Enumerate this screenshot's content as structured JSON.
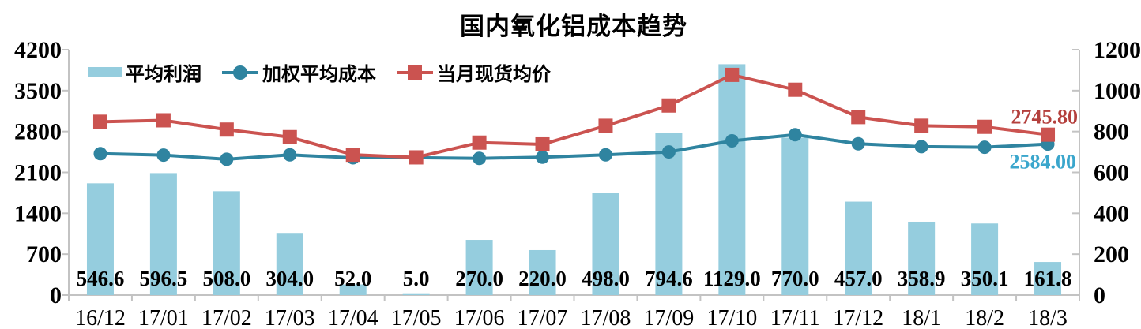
{
  "chart_data": {
    "type": "combo-bar-line",
    "title": "国内氧化铝成本趋势",
    "categories": [
      "16/12",
      "17/01",
      "17/02",
      "17/03",
      "17/04",
      "17/05",
      "17/06",
      "17/07",
      "17/08",
      "17/09",
      "17/10",
      "17/11",
      "17/12",
      "18/1",
      "18/2",
      "18/3"
    ],
    "series": [
      {
        "name": "平均利润",
        "type": "bar",
        "axis": "right",
        "color": "#95cdde",
        "values": [
          546.6,
          596.5,
          508.0,
          304.0,
          52.0,
          5.0,
          270.0,
          220.0,
          498.0,
          794.6,
          1129.0,
          770.0,
          457.0,
          358.9,
          350.1,
          161.8
        ],
        "value_labels": [
          "546.6",
          "596.5",
          "508.0",
          "304.0",
          "52.0",
          "5.0",
          "270.0",
          "220.0",
          "498.0",
          "794.6",
          "1129.0",
          "770.0",
          "457.0",
          "358.9",
          "350.1",
          "161.8"
        ]
      },
      {
        "name": "加权平均成本",
        "type": "line",
        "marker": "circle",
        "axis": "left",
        "color": "#2f84a0",
        "values": [
          2420,
          2395,
          2325,
          2400,
          2350,
          2352,
          2340,
          2360,
          2400,
          2450,
          2640,
          2745,
          2590,
          2540,
          2530,
          2584.0
        ]
      },
      {
        "name": "当月现货均价",
        "type": "line",
        "marker": "square",
        "axis": "left",
        "color": "#cb5350",
        "values": [
          2966.6,
          2991.5,
          2833.0,
          2704.0,
          2402.0,
          2357.0,
          2610.0,
          2580.0,
          2898.0,
          3244.6,
          3769.0,
          3515.0,
          3047.0,
          2898.9,
          2880.1,
          2745.8
        ]
      }
    ],
    "left_axis": {
      "min": 0,
      "max": 4200,
      "step": 700,
      "tick_labels": [
        "0",
        "700",
        "1400",
        "2100",
        "2800",
        "3500",
        "4200"
      ]
    },
    "right_axis": {
      "min": 0,
      "max": 1200,
      "step": 200,
      "tick_labels": [
        "0",
        "200",
        "400",
        "600",
        "800",
        "1000",
        "1200"
      ]
    },
    "end_labels": [
      {
        "text": "2745.80",
        "series": "当月现货均价",
        "color": "#b4403d"
      },
      {
        "text": "2584.00",
        "series": "加权平均成本",
        "color": "#3aa6cc"
      }
    ],
    "legend_position": "top-left",
    "grid": false,
    "colors": {
      "axis_line": "#c3c3c3",
      "text": "#000000",
      "background": "#ffffff"
    }
  }
}
